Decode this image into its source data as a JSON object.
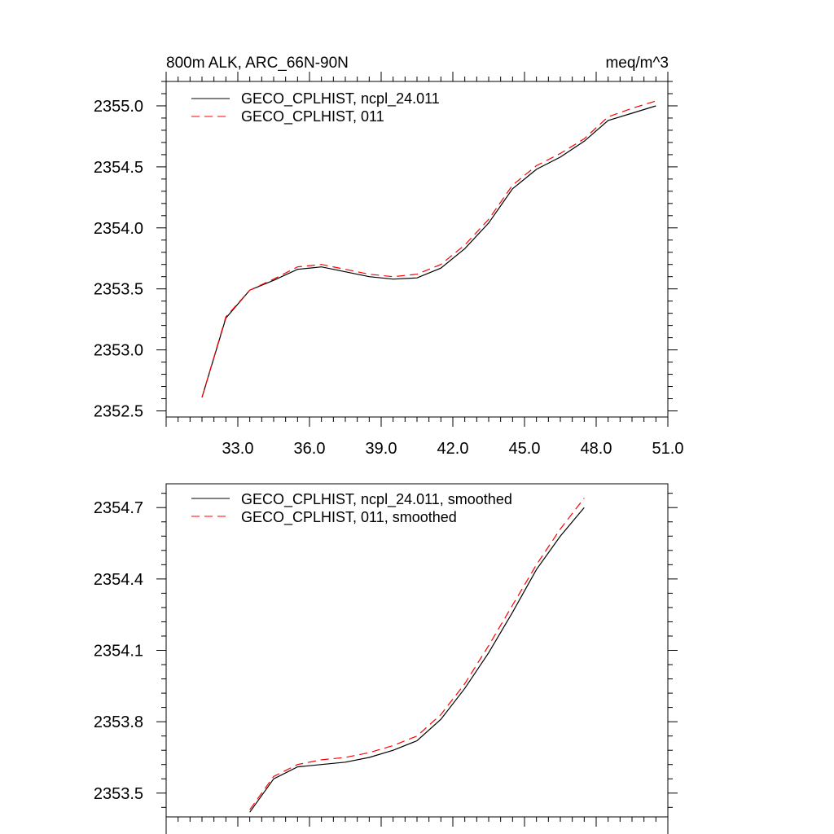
{
  "chart_data": [
    {
      "type": "line",
      "title": "800m ALK, ARC_66N-90N",
      "units_label": "meq/m^3",
      "xlim": [
        30.0,
        51.0
      ],
      "ylim": [
        2352.45,
        2355.2
      ],
      "xticks": [
        33.0,
        36.0,
        39.0,
        42.0,
        45.0,
        48.0,
        51.0
      ],
      "xtick_labels": [
        "33.0",
        "36.0",
        "39.0",
        "42.0",
        "45.0",
        "48.0",
        "51.0"
      ],
      "yticks": [
        2352.5,
        2353.0,
        2353.5,
        2354.0,
        2354.5,
        2355.0
      ],
      "ytick_labels": [
        "2352.5",
        "2353.0",
        "2353.5",
        "2354.0",
        "2354.5",
        "2355.0"
      ],
      "grid": false,
      "legend_position": "top-left",
      "series": [
        {
          "name": "GECO_CPLHIST, ncpl_24.011",
          "color": "#000000",
          "dash": "solid",
          "x": [
            31.5,
            32.5,
            33.5,
            34.5,
            35.5,
            36.5,
            37.5,
            38.5,
            39.5,
            40.5,
            41.5,
            42.5,
            43.5,
            44.5,
            45.5,
            46.5,
            47.5,
            48.5,
            49.5,
            50.5
          ],
          "y": [
            2352.61,
            2353.26,
            2353.49,
            2353.57,
            2353.66,
            2353.68,
            2353.64,
            2353.6,
            2353.58,
            2353.59,
            2353.67,
            2353.83,
            2354.04,
            2354.32,
            2354.48,
            2354.58,
            2354.71,
            2354.88,
            2354.94,
            2355.0
          ]
        },
        {
          "name": "GECO_CPLHIST, 011",
          "color": "#ff0000",
          "dash": "dashed",
          "x": [
            31.5,
            32.5,
            33.5,
            34.5,
            35.5,
            36.5,
            37.5,
            38.5,
            39.5,
            40.5,
            41.5,
            42.5,
            43.5,
            44.5,
            45.5,
            46.5,
            47.5,
            48.5,
            49.5,
            50.5
          ],
          "y": [
            2352.61,
            2353.27,
            2353.49,
            2353.58,
            2353.68,
            2353.7,
            2353.66,
            2353.62,
            2353.6,
            2353.62,
            2353.7,
            2353.86,
            2354.07,
            2354.35,
            2354.51,
            2354.61,
            2354.73,
            2354.91,
            2354.98,
            2355.04
          ]
        }
      ]
    },
    {
      "type": "line",
      "title": "",
      "xlim": [
        30.0,
        51.0
      ],
      "ylim": [
        2353.4,
        2354.8
      ],
      "yticks": [
        2353.5,
        2353.8,
        2354.1,
        2354.4,
        2354.7
      ],
      "ytick_labels": [
        "2353.5",
        "2353.8",
        "2354.1",
        "2354.4",
        "2354.7"
      ],
      "xticks": [
        33.0,
        36.0,
        39.0,
        42.0,
        45.0,
        48.0,
        51.0
      ],
      "grid": false,
      "legend_position": "top-left",
      "series": [
        {
          "name": "GECO_CPLHIST, ncpl_24.011, smoothed",
          "color": "#000000",
          "dash": "solid",
          "x": [
            33.5,
            34.5,
            35.5,
            36.5,
            37.5,
            38.5,
            39.5,
            40.5,
            41.5,
            42.5,
            43.5,
            44.5,
            45.5,
            46.5,
            47.5
          ],
          "y": [
            2353.42,
            2353.56,
            2353.61,
            2353.62,
            2353.63,
            2353.65,
            2353.68,
            2353.72,
            2353.81,
            2353.94,
            2354.09,
            2354.26,
            2354.44,
            2354.58,
            2354.7
          ]
        },
        {
          "name": "GECO_CPLHIST, 011, smoothed",
          "color": "#ff0000",
          "dash": "dashed",
          "x": [
            33.5,
            34.5,
            35.5,
            36.5,
            37.5,
            38.5,
            39.5,
            40.5,
            41.5,
            42.5,
            43.5,
            44.5,
            45.5,
            46.5,
            47.5
          ],
          "y": [
            2353.43,
            2353.57,
            2353.62,
            2353.64,
            2353.65,
            2353.67,
            2353.7,
            2353.74,
            2353.83,
            2353.96,
            2354.12,
            2354.29,
            2354.46,
            2354.61,
            2354.74
          ]
        }
      ]
    }
  ]
}
